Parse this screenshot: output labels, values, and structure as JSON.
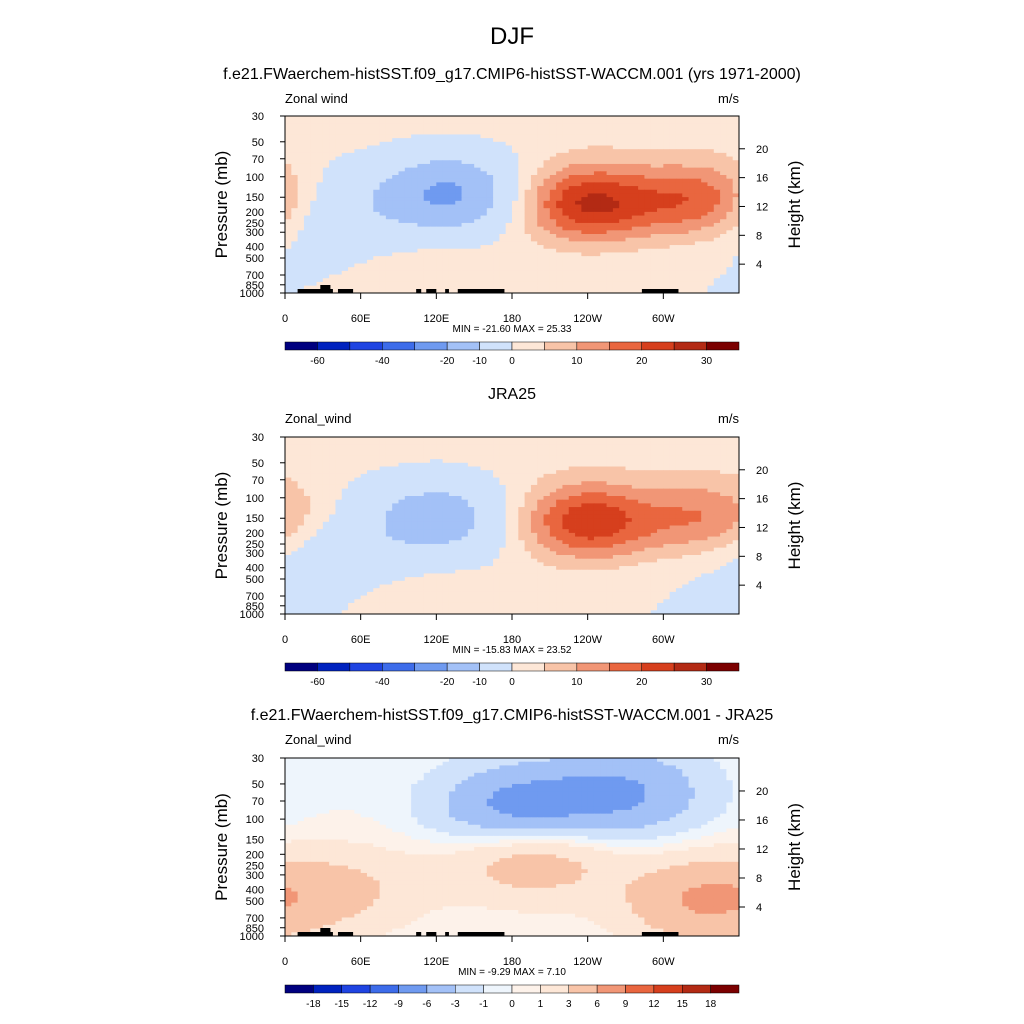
{
  "figure": {
    "season": "DJF",
    "panel_titles": [
      "f.e21.FWaerchem-histSST.f09_g17.CMIP6-histSST-WACCM.001 (yrs 1971-2000)",
      "JRA25",
      "f.e21.FWaerchem-histSST.f09_g17.CMIP6-histSST-WACCM.001 - JRA25"
    ]
  },
  "chart_data": [
    {
      "type": "heatmap",
      "title": "f.e21.FWaerchem-histSST.f09_g17.CMIP6-histSST-WACCM.001 (yrs 1971-2000)",
      "variable_label": "Zonal wind",
      "units": "m/s",
      "xlabel": "",
      "ylabel": "Pressure (mb)",
      "ylabel_right": "Height (km)",
      "x_ticks": [
        "0",
        "60E",
        "120E",
        "180",
        "120W",
        "60W"
      ],
      "y_ticks": [
        "30",
        "50",
        "70",
        "100",
        "150",
        "200",
        "250",
        "300",
        "400",
        "500",
        "700",
        "850",
        "1000"
      ],
      "y_right_ticks": [
        "20",
        "16",
        "12",
        "8",
        "4"
      ],
      "stats": "MIN = -21.60  MAX =  25.33",
      "min": -21.6,
      "max": 25.33,
      "colorbar_labels": [
        "-60",
        "-40",
        "-20",
        "-10",
        "0",
        "10",
        "20",
        "30"
      ],
      "features": [
        {
          "kind": "jet",
          "lon": 130,
          "pressure": 140,
          "value": -21.6
        },
        {
          "kind": "jet",
          "lon": 240,
          "pressure": 170,
          "value": 25.3
        },
        {
          "kind": "jet",
          "lon": 330,
          "pressure": 160,
          "value": 20
        },
        {
          "kind": "easterly",
          "lon": 30,
          "pressure": 200,
          "value": -8
        },
        {
          "kind": "westerly",
          "lon": 125,
          "pressure": 750,
          "value": 5
        }
      ]
    },
    {
      "type": "heatmap",
      "title": "JRA25",
      "variable_label": "Zonal_wind",
      "units": "m/s",
      "xlabel": "",
      "ylabel": "Pressure (mb)",
      "ylabel_right": "Height (km)",
      "x_ticks": [
        "0",
        "60E",
        "120E",
        "180",
        "120W",
        "60W"
      ],
      "y_ticks": [
        "30",
        "50",
        "70",
        "100",
        "150",
        "200",
        "250",
        "300",
        "400",
        "500",
        "700",
        "850",
        "1000"
      ],
      "y_right_ticks": [
        "20",
        "16",
        "12",
        "8",
        "4"
      ],
      "stats": "MIN = -15.83  MAX =  23.52",
      "min": -15.83,
      "max": 23.52,
      "colorbar_labels": [
        "-60",
        "-40",
        "-20",
        "-10",
        "0",
        "10",
        "20",
        "30"
      ],
      "features": [
        {
          "kind": "jet",
          "lon": 120,
          "pressure": 150,
          "value": -15.8
        },
        {
          "kind": "jet",
          "lon": 240,
          "pressure": 160,
          "value": 23.5
        },
        {
          "kind": "jet",
          "lon": 335,
          "pressure": 150,
          "value": 15
        },
        {
          "kind": "easterly",
          "lon": 30,
          "pressure": 300,
          "value": -6
        },
        {
          "kind": "westerly",
          "lon": 120,
          "pressure": 750,
          "value": 4
        }
      ]
    },
    {
      "type": "heatmap",
      "title": "f.e21.FWaerchem-histSST.f09_g17.CMIP6-histSST-WACCM.001 - JRA25",
      "variable_label": "Zonal_wind",
      "units": "m/s",
      "xlabel": "",
      "ylabel": "Pressure (mb)",
      "ylabel_right": "Height (km)",
      "x_ticks": [
        "0",
        "60E",
        "120E",
        "180",
        "120W",
        "60W"
      ],
      "y_ticks": [
        "30",
        "50",
        "70",
        "100",
        "150",
        "200",
        "250",
        "300",
        "400",
        "500",
        "700",
        "850",
        "1000"
      ],
      "y_right_ticks": [
        "20",
        "16",
        "12",
        "8",
        "4"
      ],
      "stats": "MIN =  -9.29  MAX =   7.10",
      "min": -9.29,
      "max": 7.1,
      "colorbar_labels": [
        "-18",
        "-15",
        "-12",
        "-9",
        "-6",
        "-3",
        "-1",
        "0",
        "1",
        "3",
        "6",
        "9",
        "12",
        "15",
        "18"
      ],
      "features": [
        {
          "kind": "difference",
          "lon": 185,
          "pressure": 85,
          "value": -8
        },
        {
          "kind": "difference",
          "lon": 270,
          "pressure": 60,
          "value": -6
        },
        {
          "kind": "difference",
          "lon": 195,
          "pressure": 200,
          "value": 6
        },
        {
          "kind": "difference",
          "lon": 330,
          "pressure": 500,
          "value": 6
        },
        {
          "kind": "difference",
          "lon": 50,
          "pressure": 400,
          "value": 3
        }
      ]
    }
  ]
}
